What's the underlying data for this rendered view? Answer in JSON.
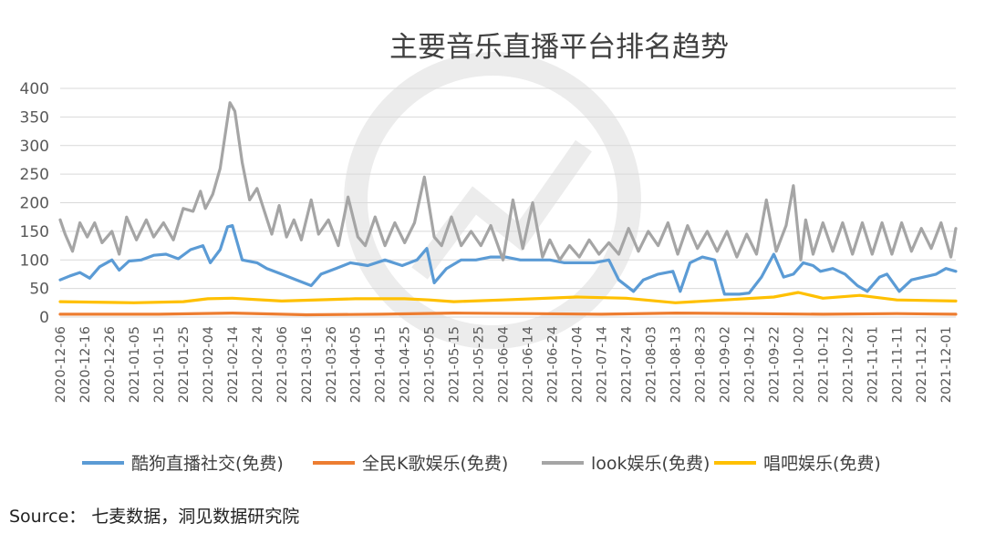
{
  "source_text": "Source：  七麦数据，洞见数据研究院",
  "colors": {
    "kugou": "#5b9bd5",
    "quanmin": "#ed7d31",
    "look": "#a5a5a5",
    "changba": "#ffc000",
    "grid": "#d9d9d9",
    "axis_text": "#595959"
  },
  "chart_data": {
    "type": "line",
    "title": "主要音乐直播平台排名趋势",
    "ylim": [
      0,
      400
    ],
    "yticks": [
      0,
      50,
      100,
      150,
      200,
      250,
      300,
      350,
      400
    ],
    "grid": true,
    "legend_position": "bottom",
    "x_start": "2020-12-06",
    "x_end": "2021-12-05",
    "x_tick_labels": [
      "2020-12-06",
      "2020-12-16",
      "2020-12-26",
      "2021-01-05",
      "2021-01-15",
      "2021-01-25",
      "2021-02-04",
      "2021-02-14",
      "2021-02-24",
      "2021-03-06",
      "2021-03-16",
      "2021-03-26",
      "2021-04-05",
      "2021-04-15",
      "2021-04-25",
      "2021-05-05",
      "2021-05-15",
      "2021-05-25",
      "2021-06-04",
      "2021-06-14",
      "2021-06-24",
      "2021-07-04",
      "2021-07-14",
      "2021-07-24",
      "2021-08-03",
      "2021-08-13",
      "2021-08-23",
      "2021-09-02",
      "2021-09-12",
      "2021-09-22",
      "2021-10-02",
      "2021-10-12",
      "2021-10-22",
      "2021-11-01",
      "2021-11-11",
      "2021-11-21",
      "2021-12-01"
    ],
    "series": [
      {
        "name": "酷狗直播社交(免费)",
        "color": "#5b9bd5",
        "points": [
          [
            "2020-12-06",
            65
          ],
          [
            "2020-12-10",
            72
          ],
          [
            "2020-12-14",
            78
          ],
          [
            "2020-12-18",
            68
          ],
          [
            "2020-12-22",
            88
          ],
          [
            "2020-12-27",
            100
          ],
          [
            "2020-12-30",
            82
          ],
          [
            "2021-01-03",
            98
          ],
          [
            "2021-01-08",
            100
          ],
          [
            "2021-01-13",
            108
          ],
          [
            "2021-01-18",
            110
          ],
          [
            "2021-01-23",
            102
          ],
          [
            "2021-01-28",
            118
          ],
          [
            "2021-02-02",
            125
          ],
          [
            "2021-02-05",
            95
          ],
          [
            "2021-02-09",
            118
          ],
          [
            "2021-02-12",
            158
          ],
          [
            "2021-02-14",
            160
          ],
          [
            "2021-02-18",
            100
          ],
          [
            "2021-02-24",
            95
          ],
          [
            "2021-02-28",
            85
          ],
          [
            "2021-03-06",
            75
          ],
          [
            "2021-03-12",
            65
          ],
          [
            "2021-03-18",
            55
          ],
          [
            "2021-03-22",
            75
          ],
          [
            "2021-03-28",
            85
          ],
          [
            "2021-04-03",
            95
          ],
          [
            "2021-04-10",
            90
          ],
          [
            "2021-04-17",
            100
          ],
          [
            "2021-04-24",
            90
          ],
          [
            "2021-04-30",
            100
          ],
          [
            "2021-05-04",
            120
          ],
          [
            "2021-05-07",
            60
          ],
          [
            "2021-05-12",
            85
          ],
          [
            "2021-05-18",
            100
          ],
          [
            "2021-05-24",
            100
          ],
          [
            "2021-05-30",
            105
          ],
          [
            "2021-06-05",
            105
          ],
          [
            "2021-06-11",
            100
          ],
          [
            "2021-06-17",
            100
          ],
          [
            "2021-06-23",
            100
          ],
          [
            "2021-06-29",
            95
          ],
          [
            "2021-07-05",
            95
          ],
          [
            "2021-07-11",
            95
          ],
          [
            "2021-07-17",
            100
          ],
          [
            "2021-07-21",
            65
          ],
          [
            "2021-07-27",
            45
          ],
          [
            "2021-07-31",
            65
          ],
          [
            "2021-08-06",
            75
          ],
          [
            "2021-08-12",
            80
          ],
          [
            "2021-08-15",
            45
          ],
          [
            "2021-08-19",
            95
          ],
          [
            "2021-08-24",
            105
          ],
          [
            "2021-08-29",
            100
          ],
          [
            "2021-09-02",
            40
          ],
          [
            "2021-09-08",
            40
          ],
          [
            "2021-09-12",
            42
          ],
          [
            "2021-09-17",
            70
          ],
          [
            "2021-09-22",
            110
          ],
          [
            "2021-09-26",
            70
          ],
          [
            "2021-09-30",
            75
          ],
          [
            "2021-10-04",
            95
          ],
          [
            "2021-10-08",
            90
          ],
          [
            "2021-10-11",
            80
          ],
          [
            "2021-10-16",
            85
          ],
          [
            "2021-10-21",
            75
          ],
          [
            "2021-10-26",
            55
          ],
          [
            "2021-10-30",
            45
          ],
          [
            "2021-11-04",
            70
          ],
          [
            "2021-11-07",
            75
          ],
          [
            "2021-11-12",
            45
          ],
          [
            "2021-11-17",
            65
          ],
          [
            "2021-11-22",
            70
          ],
          [
            "2021-11-27",
            75
          ],
          [
            "2021-12-01",
            85
          ],
          [
            "2021-12-05",
            80
          ]
        ]
      },
      {
        "name": "全民K歌娱乐(免费)",
        "color": "#ed7d31",
        "points": [
          [
            "2020-12-06",
            5
          ],
          [
            "2021-01-15",
            5
          ],
          [
            "2021-02-14",
            7
          ],
          [
            "2021-03-16",
            4
          ],
          [
            "2021-04-15",
            5
          ],
          [
            "2021-05-15",
            7
          ],
          [
            "2021-06-14",
            6
          ],
          [
            "2021-07-14",
            5
          ],
          [
            "2021-08-13",
            7
          ],
          [
            "2021-09-12",
            6
          ],
          [
            "2021-10-12",
            5
          ],
          [
            "2021-11-11",
            6
          ],
          [
            "2021-12-05",
            5
          ]
        ]
      },
      {
        "name": "look娱乐(免费)",
        "color": "#a5a5a5",
        "points": [
          [
            "2020-12-06",
            170
          ],
          [
            "2020-12-08",
            145
          ],
          [
            "2020-12-11",
            115
          ],
          [
            "2020-12-14",
            165
          ],
          [
            "2020-12-17",
            140
          ],
          [
            "2020-12-20",
            165
          ],
          [
            "2020-12-23",
            130
          ],
          [
            "2020-12-27",
            150
          ],
          [
            "2020-12-30",
            110
          ],
          [
            "2021-01-02",
            175
          ],
          [
            "2021-01-06",
            135
          ],
          [
            "2021-01-10",
            170
          ],
          [
            "2021-01-13",
            140
          ],
          [
            "2021-01-17",
            165
          ],
          [
            "2021-01-21",
            135
          ],
          [
            "2021-01-25",
            190
          ],
          [
            "2021-01-29",
            185
          ],
          [
            "2021-02-01",
            220
          ],
          [
            "2021-02-03",
            190
          ],
          [
            "2021-02-06",
            215
          ],
          [
            "2021-02-09",
            260
          ],
          [
            "2021-02-13",
            375
          ],
          [
            "2021-02-15",
            360
          ],
          [
            "2021-02-18",
            270
          ],
          [
            "2021-02-21",
            205
          ],
          [
            "2021-02-24",
            225
          ],
          [
            "2021-02-27",
            185
          ],
          [
            "2021-03-02",
            145
          ],
          [
            "2021-03-05",
            195
          ],
          [
            "2021-03-08",
            140
          ],
          [
            "2021-03-11",
            170
          ],
          [
            "2021-03-14",
            135
          ],
          [
            "2021-03-18",
            205
          ],
          [
            "2021-03-21",
            145
          ],
          [
            "2021-03-25",
            170
          ],
          [
            "2021-03-29",
            125
          ],
          [
            "2021-04-02",
            210
          ],
          [
            "2021-04-06",
            140
          ],
          [
            "2021-04-09",
            125
          ],
          [
            "2021-04-13",
            175
          ],
          [
            "2021-04-17",
            125
          ],
          [
            "2021-04-21",
            165
          ],
          [
            "2021-04-25",
            130
          ],
          [
            "2021-04-29",
            165
          ],
          [
            "2021-05-03",
            245
          ],
          [
            "2021-05-07",
            140
          ],
          [
            "2021-05-10",
            125
          ],
          [
            "2021-05-14",
            175
          ],
          [
            "2021-05-18",
            125
          ],
          [
            "2021-05-22",
            150
          ],
          [
            "2021-05-26",
            125
          ],
          [
            "2021-05-30",
            160
          ],
          [
            "2021-06-04",
            100
          ],
          [
            "2021-06-08",
            205
          ],
          [
            "2021-06-12",
            120
          ],
          [
            "2021-06-16",
            200
          ],
          [
            "2021-06-20",
            105
          ],
          [
            "2021-06-23",
            135
          ],
          [
            "2021-06-27",
            100
          ],
          [
            "2021-07-01",
            125
          ],
          [
            "2021-07-05",
            105
          ],
          [
            "2021-07-09",
            135
          ],
          [
            "2021-07-13",
            110
          ],
          [
            "2021-07-17",
            130
          ],
          [
            "2021-07-21",
            110
          ],
          [
            "2021-07-25",
            155
          ],
          [
            "2021-07-29",
            115
          ],
          [
            "2021-08-02",
            150
          ],
          [
            "2021-08-06",
            125
          ],
          [
            "2021-08-10",
            165
          ],
          [
            "2021-08-14",
            110
          ],
          [
            "2021-08-18",
            160
          ],
          [
            "2021-08-22",
            120
          ],
          [
            "2021-08-26",
            150
          ],
          [
            "2021-08-30",
            115
          ],
          [
            "2021-09-03",
            150
          ],
          [
            "2021-09-07",
            105
          ],
          [
            "2021-09-11",
            145
          ],
          [
            "2021-09-15",
            110
          ],
          [
            "2021-09-19",
            205
          ],
          [
            "2021-09-23",
            115
          ],
          [
            "2021-09-27",
            160
          ],
          [
            "2021-09-30",
            230
          ],
          [
            "2021-10-03",
            100
          ],
          [
            "2021-10-05",
            170
          ],
          [
            "2021-10-08",
            110
          ],
          [
            "2021-10-12",
            165
          ],
          [
            "2021-10-16",
            115
          ],
          [
            "2021-10-20",
            165
          ],
          [
            "2021-10-24",
            110
          ],
          [
            "2021-10-28",
            165
          ],
          [
            "2021-11-01",
            110
          ],
          [
            "2021-11-05",
            165
          ],
          [
            "2021-11-09",
            110
          ],
          [
            "2021-11-13",
            165
          ],
          [
            "2021-11-17",
            115
          ],
          [
            "2021-11-21",
            155
          ],
          [
            "2021-11-25",
            120
          ],
          [
            "2021-11-29",
            165
          ],
          [
            "2021-12-03",
            105
          ],
          [
            "2021-12-05",
            155
          ]
        ]
      },
      {
        "name": "唱吧娱乐(免费)",
        "color": "#ffc000",
        "points": [
          [
            "2020-12-06",
            27
          ],
          [
            "2021-01-05",
            25
          ],
          [
            "2021-01-25",
            27
          ],
          [
            "2021-02-04",
            32
          ],
          [
            "2021-02-14",
            33
          ],
          [
            "2021-03-06",
            28
          ],
          [
            "2021-04-05",
            32
          ],
          [
            "2021-04-25",
            32
          ],
          [
            "2021-05-05",
            30
          ],
          [
            "2021-05-15",
            27
          ],
          [
            "2021-06-04",
            30
          ],
          [
            "2021-07-04",
            35
          ],
          [
            "2021-07-24",
            33
          ],
          [
            "2021-08-13",
            25
          ],
          [
            "2021-09-02",
            30
          ],
          [
            "2021-09-22",
            35
          ],
          [
            "2021-10-02",
            43
          ],
          [
            "2021-10-12",
            33
          ],
          [
            "2021-10-27",
            38
          ],
          [
            "2021-11-11",
            30
          ],
          [
            "2021-12-05",
            28
          ]
        ]
      }
    ]
  }
}
